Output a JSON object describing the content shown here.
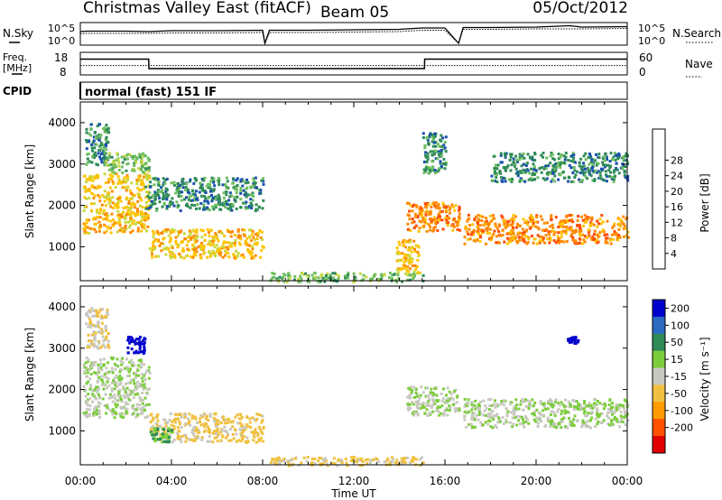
{
  "header": {
    "title": "Christmas Valley East (fitACF)",
    "beam": "Beam 05",
    "date": "05/Oct/2012"
  },
  "strip_labels": {
    "nsky": "N.Sky",
    "nsearch": "N.Search",
    "freq_line1": "Freq.",
    "freq_line2": "[MHz]",
    "nave": "Nave",
    "cpid": "CPID",
    "noise_ticks": [
      "10^5",
      "10^0"
    ],
    "freq_ticks": [
      "18",
      "8"
    ],
    "nave_ticks": [
      "60",
      "0"
    ],
    "cpid_text": "normal (fast) 151 IF"
  },
  "chart_data": [
    {
      "type": "line",
      "name": "noise-strip",
      "x": [
        0,
        0.3,
        2,
        3,
        4,
        6,
        8,
        8.1,
        8.3,
        10,
        12,
        14,
        15,
        16,
        16.6,
        16.8,
        18,
        20,
        21.5,
        22,
        24
      ],
      "series": [
        {
          "name": "N.Sky",
          "values": [
            3.0,
            3.1,
            3.1,
            3.0,
            3.2,
            3.2,
            3.3,
            0.4,
            3.3,
            3.3,
            3.4,
            3.5,
            3.8,
            3.8,
            0.4,
            3.9,
            3.9,
            4.0,
            4.3,
            4.0,
            4.1
          ]
        },
        {
          "name": "N.Search",
          "values": [
            2.5,
            2.6,
            2.6,
            2.6,
            2.7,
            2.7,
            2.8,
            0.4,
            2.8,
            2.8,
            2.9,
            3.0,
            3.3,
            3.3,
            0.4,
            3.5,
            3.5,
            3.6,
            3.6,
            3.6,
            3.7
          ]
        }
      ],
      "xlim": [
        0,
        24
      ],
      "ylim": [
        0,
        5
      ]
    },
    {
      "type": "line",
      "name": "freq-nave-strip",
      "x": [
        0,
        3,
        3.01,
        15.1,
        15.11,
        24
      ],
      "series": [
        {
          "name": "Freq.",
          "values": [
            15,
            15,
            10.8,
            10.8,
            15,
            15
          ]
        },
        {
          "name": "Nave",
          "values": [
            25,
            25,
            25,
            25,
            25,
            25
          ]
        }
      ],
      "xlim": [
        0,
        24
      ],
      "ylim": [
        8,
        18
      ]
    },
    {
      "type": "heatmap",
      "name": "power-panel",
      "ylabel": "Slant Range [km]",
      "ylim": [
        180,
        4500
      ],
      "yticks": [
        "1000",
        "2000",
        "3000",
        "4000"
      ],
      "xlim": [
        0,
        24
      ],
      "colorbar": {
        "label": "Power [dB]",
        "ticks": [
          "4",
          "8",
          "12",
          "16",
          "20",
          "24",
          "28"
        ],
        "colors": [
          "#0000ee",
          "#1a4fb0",
          "#2e8b57",
          "#6fbf5f",
          "#c8d840",
          "#ffc400",
          "#ff8a00",
          "#ff4a00",
          "#e00000"
        ]
      },
      "features": [
        {
          "x0": 0.1,
          "x1": 3.0,
          "r0": 1350,
          "r1": 2800,
          "value": 20
        },
        {
          "x0": 0.2,
          "x1": 1.2,
          "r0": 3000,
          "r1": 4000,
          "value": 8
        },
        {
          "x0": 1.0,
          "x1": 3.0,
          "r0": 2800,
          "r1": 3300,
          "value": 12
        },
        {
          "x0": 2.8,
          "x1": 8.0,
          "r0": 1900,
          "r1": 2700,
          "value": 8
        },
        {
          "x0": 3.0,
          "x1": 8.0,
          "r0": 750,
          "r1": 1450,
          "value": 20
        },
        {
          "x0": 8.3,
          "x1": 15.0,
          "r0": 180,
          "r1": 400,
          "value": 12
        },
        {
          "x0": 13.8,
          "x1": 14.8,
          "r0": 400,
          "r1": 1200,
          "value": 20
        },
        {
          "x0": 14.3,
          "x1": 16.6,
          "r0": 1400,
          "r1": 2100,
          "value": 24
        },
        {
          "x0": 15.0,
          "x1": 16.0,
          "r0": 2800,
          "r1": 3800,
          "value": 8
        },
        {
          "x0": 16.8,
          "x1": 24.0,
          "r0": 1100,
          "r1": 1800,
          "value": 24
        },
        {
          "x0": 18.0,
          "x1": 24.0,
          "r0": 2600,
          "r1": 3300,
          "value": 8
        }
      ]
    },
    {
      "type": "heatmap",
      "name": "velocity-panel",
      "ylabel": "Slant Range [km]",
      "xlabel": "Time UT",
      "ylim": [
        180,
        4500
      ],
      "yticks": [
        "1000",
        "2000",
        "3000",
        "4000"
      ],
      "xlim": [
        0,
        24
      ],
      "xticks": [
        "00:00",
        "04:00",
        "08:00",
        "12:00",
        "16:00",
        "20:00",
        "00:00"
      ],
      "colorbar": {
        "label": "Velocity [m s⁻¹]",
        "ticks": [
          "200",
          "100",
          "50",
          "15",
          "-15",
          "-50",
          "-100",
          "-200"
        ],
        "colors": [
          "#0000cc",
          "#2a6ac0",
          "#2e8b57",
          "#7ccd3c",
          "#c8c8c0",
          "#f0c040",
          "#ff9a00",
          "#ff5000",
          "#e00000"
        ]
      },
      "features": [
        {
          "x0": 0.1,
          "x1": 3.0,
          "r0": 1350,
          "r1": 2800,
          "value": 0
        },
        {
          "x0": 0.2,
          "x1": 1.2,
          "r0": 3000,
          "r1": 4000,
          "value": -30
        },
        {
          "x0": 2.0,
          "x1": 2.8,
          "r0": 2900,
          "r1": 3300,
          "value": 200
        },
        {
          "x0": 3.0,
          "x1": 8.0,
          "r0": 750,
          "r1": 1450,
          "value": -40
        },
        {
          "x0": 3.0,
          "x1": 4.0,
          "r0": 750,
          "r1": 1100,
          "value": 30
        },
        {
          "x0": 8.3,
          "x1": 15.0,
          "r0": 180,
          "r1": 400,
          "value": -40
        },
        {
          "x0": 14.3,
          "x1": 16.6,
          "r0": 1400,
          "r1": 2100,
          "value": 0
        },
        {
          "x0": 16.8,
          "x1": 24.0,
          "r0": 1100,
          "r1": 1800,
          "value": 0
        },
        {
          "x0": 21.3,
          "x1": 21.8,
          "r0": 3100,
          "r1": 3300,
          "value": 200
        }
      ]
    }
  ]
}
